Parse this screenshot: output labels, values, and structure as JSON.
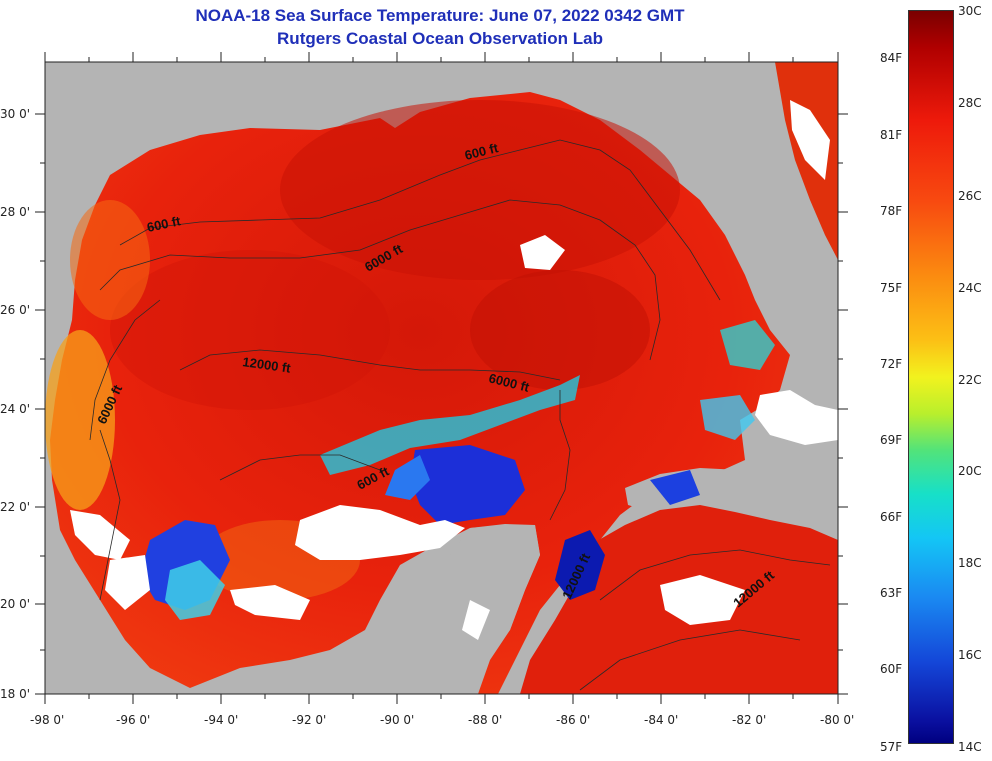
{
  "title": "NOAA-18 Sea Surface Temperature:  June 07, 2022 0342 GMT",
  "subtitle": "Rutgers Coastal Ocean Observation Lab",
  "map": {
    "region": "Gulf of Mexico",
    "lon_range": [
      -98,
      -80
    ],
    "lat_range": [
      18,
      31
    ],
    "colors": {
      "land": "#b4b4b4",
      "sea_warm": "#e8200c",
      "cloud": "#ffffff"
    }
  },
  "lat_labels": [
    "30 0'",
    "28 0'",
    "26 0'",
    "24 0'",
    "22 0'",
    "20 0'",
    "18 0'"
  ],
  "lon_labels": [
    "-98 0'",
    "-96 0'",
    "-94 0'",
    "-92 0'",
    "-90 0'",
    "-88 0'",
    "-86 0'",
    "-84 0'",
    "-82 0'",
    "-80 0'"
  ],
  "contours": [
    "600 ft",
    "600 ft",
    "600 ft",
    "6000 ft",
    "6000 ft",
    "6000 ft",
    "12000 ft",
    "12000 ft",
    "12000 ft"
  ],
  "colorbar": {
    "celsius": [
      "30C",
      "28C",
      "26C",
      "24C",
      "22C",
      "20C",
      "18C",
      "16C",
      "14C"
    ],
    "fahrenheit": [
      "84F",
      "81F",
      "78F",
      "75F",
      "72F",
      "69F",
      "66F",
      "63F",
      "60F",
      "57F"
    ]
  }
}
